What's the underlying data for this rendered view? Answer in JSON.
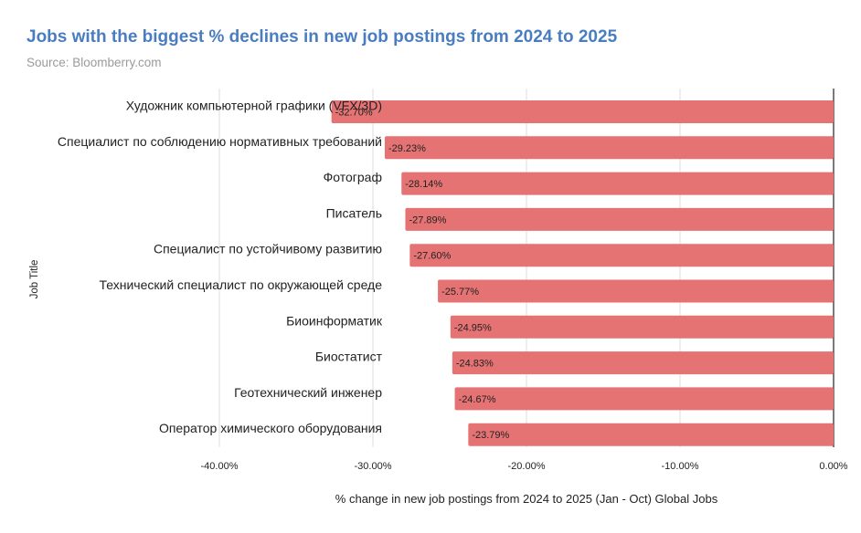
{
  "header": {
    "title": "Jobs with the biggest % declines in new job postings from 2024 to 2025",
    "subtitle": "Source: Bloomberry.com"
  },
  "colors": {
    "title": "#4a7dc0",
    "bar": "#e57373",
    "grid": "#dddddd",
    "zero_line": "#222222"
  },
  "chart_data": {
    "type": "bar",
    "orientation": "horizontal",
    "title": "Jobs with the biggest % declines in new job postings from 2024 to 2025",
    "subtitle": "Source: Bloomberry.com",
    "xlabel": "% change in new job postings from 2024 to 2025 (Jan - Oct) Global Jobs",
    "ylabel": "Job Title",
    "xlim": [
      -40,
      0
    ],
    "xticks": [
      -40,
      -30,
      -20,
      -10,
      0
    ],
    "xtick_labels": [
      "-40.00%",
      "-30.00%",
      "-20.00%",
      "-10.00%",
      "0.00%"
    ],
    "grid": true,
    "categories": [
      "Художник компьютерной графики (VFX/3D)",
      "Специалист по соблюдению нормативных требований",
      "Фотограф",
      "Писатель",
      "Специалист по устойчивому развитию",
      "Технический специалист по окружающей среде",
      "Биоинформатик",
      "Биостатист",
      "Геотехнический инженер",
      "Оператор химического оборудования"
    ],
    "values": [
      -32.7,
      -29.23,
      -28.14,
      -27.89,
      -27.6,
      -25.77,
      -24.95,
      -24.83,
      -24.67,
      -23.79
    ],
    "value_labels": [
      "-32.70%",
      "-29.23%",
      "-28.14%",
      "-27.89%",
      "-27.60%",
      "-25.77%",
      "-24.95%",
      "-24.83%",
      "-24.67%",
      "-23.79%"
    ]
  }
}
